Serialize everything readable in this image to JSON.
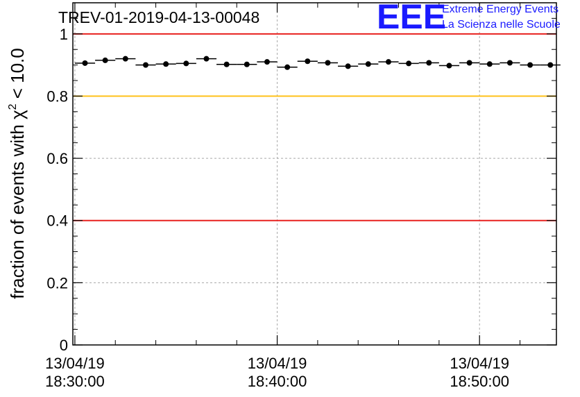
{
  "title": "TREV-01-2019-04-13-00048",
  "logo": {
    "mark": "EEE",
    "line1": "Extreme Energy Events",
    "line2": "La Scienza nelle Scuole"
  },
  "chart_data": {
    "type": "scatter",
    "title": "TREV-01-2019-04-13-00048",
    "ylabel": "fraction of events with χ² < 10.0",
    "ylabel_parts": {
      "main": "fraction of events with χ",
      "sup": "2",
      "rest": " < 10.0"
    },
    "xlabel": "",
    "ylim": [
      0,
      1.1
    ],
    "x_range_minutes": [
      -0.1,
      23.8
    ],
    "y_ticks": [
      {
        "value": 0,
        "label": "0"
      },
      {
        "value": 0.2,
        "label": "0.2"
      },
      {
        "value": 0.4,
        "label": "0.4"
      },
      {
        "value": 0.6,
        "label": "0.6"
      },
      {
        "value": 0.8,
        "label": "0.8"
      },
      {
        "value": 1,
        "label": "1"
      }
    ],
    "x_ticks": [
      {
        "minute": 0,
        "date": "13/04/19",
        "time": "18:30:00"
      },
      {
        "minute": 10,
        "date": "13/04/19",
        "time": "18:40:00"
      },
      {
        "minute": 20,
        "date": "13/04/19",
        "time": "18:50:00"
      }
    ],
    "grid": true,
    "reference_lines": [
      {
        "y": 1.0,
        "color": "#e8201e"
      },
      {
        "y": 0.8,
        "color": "#ffc21a"
      },
      {
        "y": 0.4,
        "color": "#e8201e"
      }
    ],
    "bin_width_minutes": 1,
    "series": [
      {
        "x": [
          0.5,
          1.5,
          2.5,
          3.5,
          4.5,
          5.5,
          6.5,
          7.5,
          8.5,
          9.5,
          10.5,
          11.5,
          12.5,
          13.5,
          14.5,
          15.5,
          16.5,
          17.5,
          18.5,
          19.5,
          20.5,
          21.5,
          22.5,
          23.5
        ],
        "y": [
          0.906,
          0.915,
          0.92,
          0.9,
          0.903,
          0.905,
          0.92,
          0.902,
          0.902,
          0.91,
          0.893,
          0.912,
          0.907,
          0.896,
          0.903,
          0.91,
          0.905,
          0.907,
          0.898,
          0.907,
          0.903,
          0.907,
          0.9,
          0.9
        ]
      }
    ]
  }
}
